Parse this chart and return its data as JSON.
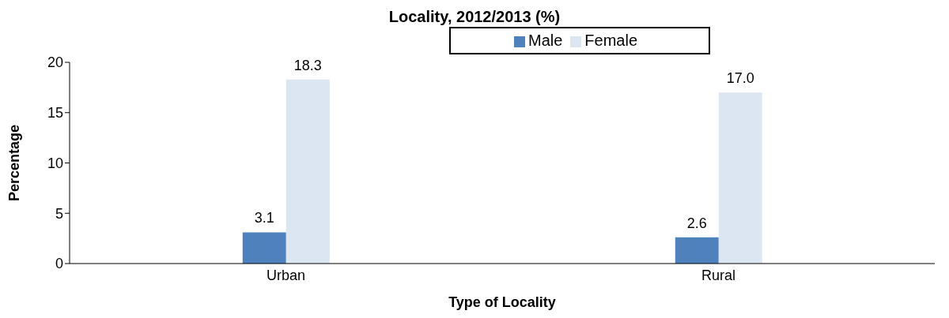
{
  "chart_data": {
    "type": "bar",
    "title": "Locality, 2012/2013 (%)",
    "xlabel": "Type of Locality",
    "ylabel": "Percentage",
    "categories": [
      "Urban",
      "Rural"
    ],
    "series": [
      {
        "name": "Male",
        "color": "#4f81bd",
        "values": [
          3.1,
          2.6
        ],
        "value_labels": [
          "3.1",
          "2.6"
        ]
      },
      {
        "name": "Female",
        "color": "#dce6f2",
        "values": [
          18.3,
          17.0
        ],
        "value_labels": [
          "18.3",
          "17.0"
        ]
      }
    ],
    "ylim": [
      0,
      20
    ],
    "yticks": [
      0,
      5,
      10,
      15,
      20
    ],
    "grid": false,
    "legend": "top"
  }
}
